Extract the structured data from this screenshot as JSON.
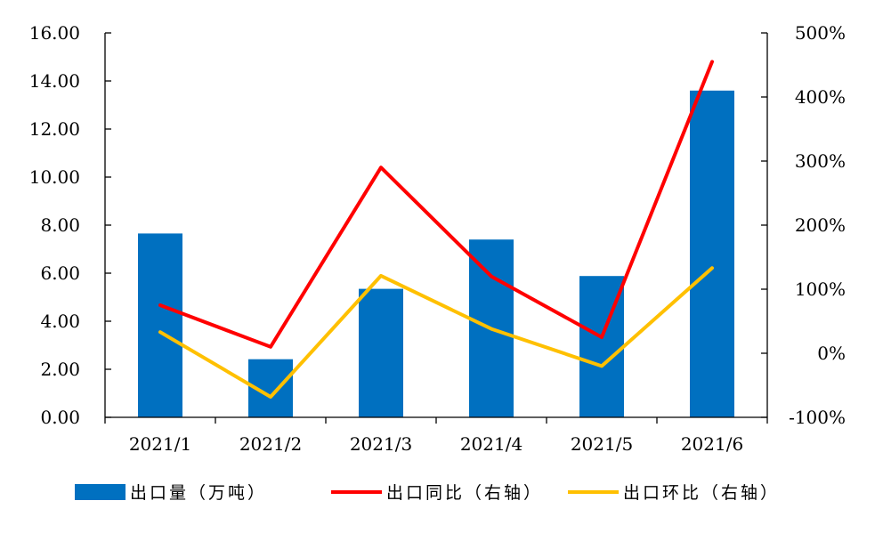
{
  "chart_data": {
    "type": "bar",
    "categories": [
      "2021/1",
      "2021/2",
      "2021/3",
      "2021/4",
      "2021/5",
      "2021/6"
    ],
    "y_left": {
      "ylim": [
        0,
        16
      ],
      "ticks": [
        0,
        2,
        4,
        6,
        8,
        10,
        12,
        14,
        16
      ],
      "tick_labels": [
        "0.00",
        "2.00",
        "4.00",
        "6.00",
        "8.00",
        "10.00",
        "12.00",
        "14.00",
        "16.00"
      ]
    },
    "y_right": {
      "ylim": [
        -100,
        500
      ],
      "ticks": [
        -100,
        0,
        100,
        200,
        300,
        400,
        500
      ],
      "tick_labels": [
        "-100%",
        "0%",
        "100%",
        "200%",
        "300%",
        "400%",
        "500%"
      ]
    },
    "series": [
      {
        "name": "出口量（万吨）",
        "type": "bar",
        "axis": "left",
        "color": "#0070C0",
        "values": [
          7.65,
          2.42,
          5.35,
          7.4,
          5.88,
          13.6
        ]
      },
      {
        "name": "出口同比（右轴）",
        "type": "line",
        "axis": "right",
        "color": "#FF0000",
        "values": [
          75,
          10,
          290,
          120,
          25,
          455
        ]
      },
      {
        "name": "出口环比（右轴）",
        "type": "line",
        "axis": "right",
        "color": "#FFC000",
        "values": [
          33,
          -68,
          121,
          38,
          -20,
          133
        ]
      }
    ],
    "grid": false,
    "legend": "bottom"
  }
}
